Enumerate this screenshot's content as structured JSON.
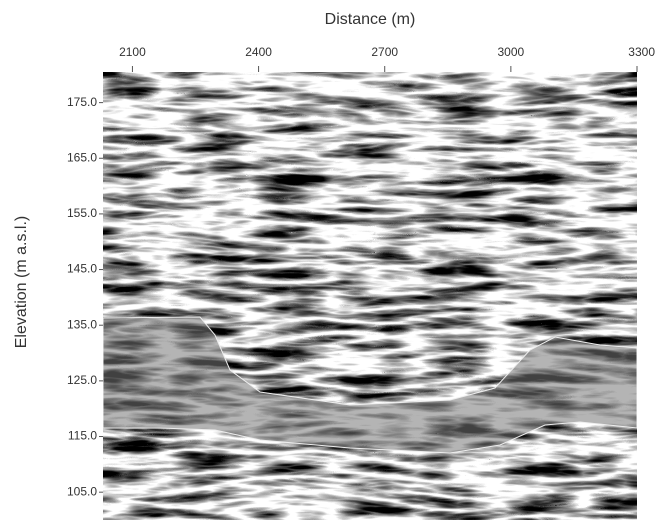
{
  "chart_data": {
    "type": "radargram",
    "x_label": "Distance (m)",
    "y_label": "Elevation (m a.s.l.)",
    "xlim": [
      2030,
      3300
    ],
    "xticks": [
      2100,
      2400,
      2700,
      3000,
      3300
    ],
    "ylim": [
      100,
      180.5
    ],
    "yticks": [
      {
        "value": 175,
        "label": "175.0"
      },
      {
        "value": 165,
        "label": "165.0"
      },
      {
        "value": 155,
        "label": "155.0"
      },
      {
        "value": 145,
        "label": "145.0"
      },
      {
        "value": 135,
        "label": "135.0"
      },
      {
        "value": 125,
        "label": "125.0"
      },
      {
        "value": 115,
        "label": "115.0"
      },
      {
        "value": 105,
        "label": "105.0"
      }
    ]
  }
}
